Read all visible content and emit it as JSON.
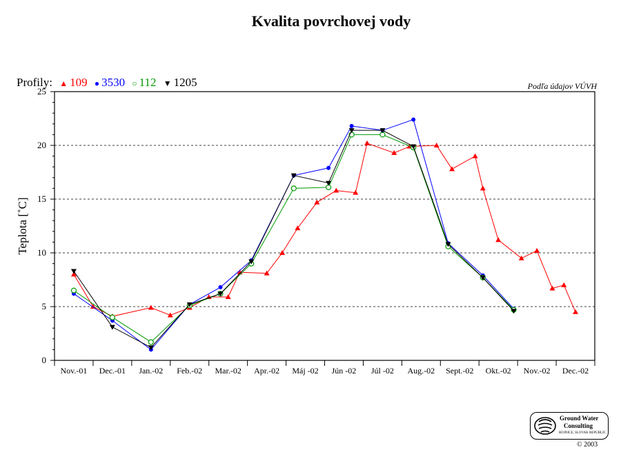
{
  "chart_data": {
    "type": "line",
    "title": "Kvalita povrchovej vody",
    "ylabel": "Teplota  [˚C]",
    "xlabel": "",
    "ylim": [
      0,
      25
    ],
    "yticks": [
      0,
      5,
      10,
      15,
      20,
      25
    ],
    "grid": "horizontal dashed at 5, 10, 15, 20",
    "legend_prefix": "Profily:",
    "legend_position": "top-left",
    "source_note": "Podľa údajov VÚVH",
    "months": [
      "Nov.-01",
      "Dec.-01",
      "Jan.-02",
      "Feb.-02",
      "Mar.-02",
      "Apr.-02",
      "Máj -02",
      "Jún -02",
      "Júl -02",
      "Aug.-02",
      "Sept.-02",
      "Okt.-02",
      "Nov.-02",
      "Dec.-02"
    ],
    "series": [
      {
        "name": "109",
        "color": "#ff0000",
        "marker": "triangle-up",
        "points": [
          [
            0.0,
            8.0
          ],
          [
            0.5,
            5.0
          ],
          [
            1.0,
            4.1
          ],
          [
            2.0,
            4.9
          ],
          [
            2.5,
            4.2
          ],
          [
            3.0,
            4.9
          ],
          [
            3.5,
            5.9
          ],
          [
            4.0,
            5.9
          ],
          [
            4.3,
            8.2
          ],
          [
            5.0,
            8.1
          ],
          [
            5.4,
            10.0
          ],
          [
            5.8,
            12.3
          ],
          [
            6.3,
            14.7
          ],
          [
            6.8,
            15.8
          ],
          [
            7.3,
            15.6
          ],
          [
            7.6,
            20.2
          ],
          [
            8.3,
            19.3
          ],
          [
            8.7,
            19.9
          ],
          [
            9.4,
            20.0
          ],
          [
            9.8,
            17.8
          ],
          [
            10.4,
            19.0
          ],
          [
            10.6,
            16.0
          ],
          [
            11.0,
            11.2
          ],
          [
            11.6,
            9.5
          ],
          [
            12.0,
            10.2
          ],
          [
            12.4,
            6.7
          ],
          [
            12.7,
            7.0
          ],
          [
            13.0,
            4.5
          ]
        ]
      },
      {
        "name": "3530",
        "color": "#0000ff",
        "marker": "circle",
        "points": [
          [
            0.0,
            6.2
          ],
          [
            1.0,
            3.7
          ],
          [
            2.0,
            1.0
          ],
          [
            3.0,
            5.2
          ],
          [
            3.8,
            6.8
          ],
          [
            4.6,
            9.3
          ],
          [
            5.7,
            17.2
          ],
          [
            6.6,
            17.9
          ],
          [
            7.2,
            21.8
          ],
          [
            8.0,
            21.4
          ],
          [
            8.8,
            22.4
          ],
          [
            9.7,
            10.9
          ],
          [
            10.6,
            7.9
          ],
          [
            11.4,
            4.8
          ]
        ]
      },
      {
        "name": "112",
        "color": "#009900",
        "marker": "circle-open",
        "points": [
          [
            0.0,
            6.5
          ],
          [
            1.0,
            4.0
          ],
          [
            2.0,
            1.7
          ],
          [
            3.0,
            5.1
          ],
          [
            3.8,
            6.2
          ],
          [
            4.6,
            9.0
          ],
          [
            5.7,
            16.0
          ],
          [
            6.6,
            16.1
          ],
          [
            7.2,
            21.0
          ],
          [
            8.0,
            21.0
          ],
          [
            8.8,
            19.8
          ],
          [
            9.7,
            10.6
          ],
          [
            10.6,
            7.7
          ],
          [
            11.4,
            4.7
          ]
        ]
      },
      {
        "name": "1205",
        "color": "#000000",
        "marker": "triangle-down",
        "points": [
          [
            0.0,
            8.3
          ],
          [
            1.0,
            3.1
          ],
          [
            2.0,
            1.2
          ],
          [
            3.0,
            5.2
          ],
          [
            3.8,
            6.2
          ],
          [
            4.6,
            9.2
          ],
          [
            5.7,
            17.2
          ],
          [
            6.6,
            16.5
          ],
          [
            7.2,
            21.4
          ],
          [
            8.0,
            21.4
          ],
          [
            8.8,
            19.9
          ],
          [
            9.7,
            10.8
          ],
          [
            10.6,
            7.7
          ],
          [
            11.4,
            4.6
          ]
        ]
      }
    ]
  },
  "logo": {
    "line1": "Ground Water",
    "line2": "Consulting",
    "line3": "BOJNICE, SLOVAK REPUBLIC"
  },
  "copyright": "© 2003"
}
